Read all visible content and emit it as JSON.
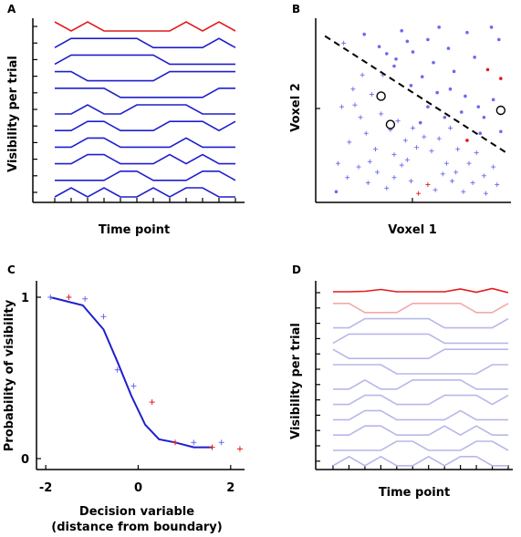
{
  "panels": {
    "A": {
      "letter": "A",
      "ylabel": "Visibility per trial",
      "xlabel": "Time point"
    },
    "B": {
      "letter": "B",
      "ylabel": "Voxel 2",
      "xlabel": "Voxel 1"
    },
    "C": {
      "letter": "C",
      "ylabel": "Probability of visibility",
      "xlabel_line1": "Decision variable",
      "xlabel_line2": "(distance from boundary)"
    },
    "D": {
      "letter": "D",
      "ylabel": "Visibility per trial",
      "xlabel": "Time point"
    }
  },
  "colors": {
    "axis": "#000000",
    "red": "#e41a1c",
    "blue": "#1f1fcc",
    "light_blue": "#b7b7ea",
    "light_red": "#f2a9a9",
    "scatter_blue": "#6a6af0",
    "boundary": "#000000"
  },
  "chart_data": [
    {
      "panel": "A",
      "type": "line",
      "description_note": "",
      "n_timepoints": 12,
      "series": [
        {
          "color": "red",
          "values": [
            1,
            0,
            1,
            0,
            0,
            0,
            0,
            0,
            1,
            0,
            1,
            0
          ]
        },
        {
          "color": "blue",
          "values": [
            0,
            1,
            1,
            1,
            1,
            1,
            0,
            0,
            0,
            0,
            1,
            0
          ]
        },
        {
          "color": "blue",
          "values": [
            0,
            1,
            1,
            1,
            1,
            1,
            1,
            0,
            0,
            0,
            0,
            0
          ]
        },
        {
          "color": "blue",
          "values": [
            1,
            1,
            0,
            0,
            0,
            0,
            0,
            1,
            1,
            1,
            1,
            1
          ]
        },
        {
          "color": "blue",
          "values": [
            1,
            1,
            1,
            1,
            0,
            0,
            0,
            0,
            0,
            0,
            1,
            1
          ]
        },
        {
          "color": "blue",
          "values": [
            0,
            0,
            1,
            0,
            0,
            1,
            1,
            1,
            1,
            0,
            0,
            0
          ]
        },
        {
          "color": "blue",
          "values": [
            0,
            0,
            1,
            1,
            0,
            0,
            0,
            1,
            1,
            1,
            0,
            1
          ]
        },
        {
          "color": "blue",
          "values": [
            0,
            0,
            1,
            1,
            0,
            0,
            0,
            0,
            1,
            0,
            0,
            0
          ]
        },
        {
          "color": "blue",
          "values": [
            0,
            0,
            1,
            1,
            0,
            0,
            0,
            1,
            0,
            1,
            0,
            0
          ]
        },
        {
          "color": "blue",
          "values": [
            0,
            0,
            0,
            0,
            1,
            1,
            0,
            0,
            0,
            1,
            1,
            0
          ]
        },
        {
          "color": "blue",
          "values": [
            0,
            1,
            0,
            1,
            0,
            0,
            1,
            0,
            1,
            1,
            0,
            0
          ]
        }
      ]
    },
    {
      "panel": "B",
      "type": "scatter",
      "xlim": [
        0,
        1
      ],
      "ylim": [
        0,
        1
      ],
      "boundary": [
        [
          0.03,
          0.92
        ],
        [
          1.0,
          0.26
        ]
      ],
      "points": [
        [
          0.09,
          0.04,
          "b",
          "*"
        ],
        [
          0.13,
          0.88,
          "b",
          "+"
        ],
        [
          0.24,
          0.93,
          "b",
          "*"
        ],
        [
          0.32,
          0.86,
          "b",
          "*"
        ],
        [
          0.41,
          0.79,
          "b",
          "*"
        ],
        [
          0.44,
          0.95,
          "b",
          "*"
        ],
        [
          0.5,
          0.83,
          "b",
          "*"
        ],
        [
          0.58,
          0.9,
          "b",
          "*"
        ],
        [
          0.61,
          0.77,
          "b",
          "*"
        ],
        [
          0.69,
          0.85,
          "b",
          "*"
        ],
        [
          0.72,
          0.72,
          "b",
          "*"
        ],
        [
          0.79,
          0.94,
          "b",
          "*"
        ],
        [
          0.83,
          0.8,
          "b",
          "*"
        ],
        [
          0.9,
          0.73,
          "r",
          "*"
        ],
        [
          0.96,
          0.9,
          "b",
          "*"
        ],
        [
          0.49,
          0.64,
          "b",
          "*"
        ],
        [
          0.55,
          0.69,
          "b",
          "*"
        ],
        [
          0.63,
          0.6,
          "b",
          "*"
        ],
        [
          0.7,
          0.62,
          "b",
          "*"
        ],
        [
          0.78,
          0.58,
          "b",
          "*"
        ],
        [
          0.85,
          0.52,
          "b",
          "*"
        ],
        [
          0.93,
          0.56,
          "b",
          "*"
        ],
        [
          0.97,
          0.68,
          "r",
          "*"
        ],
        [
          0.58,
          0.52,
          "b",
          "*"
        ],
        [
          0.67,
          0.46,
          "b",
          "*"
        ],
        [
          0.76,
          0.49,
          "b",
          "*"
        ],
        [
          0.88,
          0.46,
          "b",
          "*"
        ],
        [
          0.54,
          0.43,
          "b",
          "*"
        ],
        [
          0.86,
          0.37,
          "b",
          "*"
        ],
        [
          0.79,
          0.33,
          "r",
          "*"
        ],
        [
          0.97,
          0.38,
          "b",
          "*"
        ],
        [
          0.4,
          0.75,
          "b",
          "*"
        ],
        [
          0.36,
          0.82,
          "b",
          "*"
        ],
        [
          0.47,
          0.89,
          "b",
          "*"
        ],
        [
          0.64,
          0.97,
          "b",
          "*"
        ],
        [
          0.92,
          0.97,
          "b",
          "*"
        ],
        [
          0.12,
          0.52,
          "b",
          "+"
        ],
        [
          0.16,
          0.32,
          "b",
          "+"
        ],
        [
          0.19,
          0.53,
          "b",
          "+"
        ],
        [
          0.22,
          0.46,
          "b",
          "+"
        ],
        [
          0.25,
          0.37,
          "b",
          "+"
        ],
        [
          0.28,
          0.59,
          "b",
          "+"
        ],
        [
          0.3,
          0.28,
          "b",
          "+"
        ],
        [
          0.33,
          0.48,
          "b",
          "+"
        ],
        [
          0.38,
          0.39,
          "b",
          "+"
        ],
        [
          0.4,
          0.25,
          "b",
          "+"
        ],
        [
          0.42,
          0.44,
          "b",
          "+"
        ],
        [
          0.46,
          0.33,
          "b",
          "+"
        ],
        [
          0.5,
          0.4,
          "b",
          "+"
        ],
        [
          0.52,
          0.29,
          "b",
          "+"
        ],
        [
          0.56,
          0.35,
          "b",
          "+"
        ],
        [
          0.6,
          0.27,
          "b",
          "+"
        ],
        [
          0.64,
          0.34,
          "b",
          "+"
        ],
        [
          0.7,
          0.4,
          "b",
          "+"
        ],
        [
          0.74,
          0.28,
          "b",
          "+"
        ],
        [
          0.8,
          0.2,
          "b",
          "+"
        ],
        [
          0.84,
          0.26,
          "b",
          "+"
        ],
        [
          0.88,
          0.13,
          "b",
          "+"
        ],
        [
          0.93,
          0.18,
          "b",
          "+"
        ],
        [
          0.15,
          0.12,
          "b",
          "+"
        ],
        [
          0.21,
          0.18,
          "b",
          "+"
        ],
        [
          0.26,
          0.09,
          "b",
          "+"
        ],
        [
          0.31,
          0.15,
          "b",
          "+"
        ],
        [
          0.36,
          0.06,
          "b",
          "+"
        ],
        [
          0.4,
          0.12,
          "b",
          "+"
        ],
        [
          0.44,
          0.19,
          "b",
          "+"
        ],
        [
          0.49,
          0.1,
          "b",
          "+"
        ],
        [
          0.53,
          0.03,
          "r",
          "+"
        ],
        [
          0.58,
          0.08,
          "r",
          "+"
        ],
        [
          0.62,
          0.05,
          "b",
          "+"
        ],
        [
          0.66,
          0.14,
          "b",
          "+"
        ],
        [
          0.71,
          0.1,
          "b",
          "+"
        ],
        [
          0.77,
          0.04,
          "b",
          "+"
        ],
        [
          0.82,
          0.09,
          "b",
          "+"
        ],
        [
          0.89,
          0.03,
          "b",
          "+"
        ],
        [
          0.95,
          0.08,
          "b",
          "+"
        ],
        [
          0.34,
          0.7,
          "b",
          "+"
        ],
        [
          0.18,
          0.62,
          "b",
          "+"
        ],
        [
          0.23,
          0.7,
          "b",
          "+"
        ],
        [
          0.27,
          0.21,
          "b",
          "+"
        ],
        [
          0.47,
          0.22,
          "b",
          "+"
        ],
        [
          0.1,
          0.2,
          "b",
          "+"
        ],
        [
          0.68,
          0.2,
          "b",
          "+"
        ],
        [
          0.73,
          0.15,
          "b",
          "+"
        ]
      ],
      "circled": [
        [
          0.33,
          0.58
        ],
        [
          0.38,
          0.42
        ],
        [
          0.97,
          0.5
        ]
      ]
    },
    {
      "panel": "C",
      "type": "line",
      "xlabel_ticks": [
        "-2",
        "0",
        "2"
      ],
      "ylabel_ticks": [
        "0",
        "1"
      ],
      "xlim": [
        -2.2,
        2.3
      ],
      "ylim": [
        -0.05,
        1.05
      ],
      "curve_x": [
        -1.9,
        -1.2,
        -0.75,
        -0.45,
        -0.15,
        0.15,
        0.45,
        0.8,
        1.2,
        1.6
      ],
      "curve_y": [
        1.0,
        0.95,
        0.8,
        0.6,
        0.39,
        0.21,
        0.12,
        0.1,
        0.07,
        0.07
      ],
      "points_x": [
        -1.9,
        -1.5,
        -1.15,
        -0.75,
        -0.45,
        -0.1,
        0.3,
        0.8,
        1.2,
        1.6,
        1.8,
        2.2
      ],
      "points_y": [
        1.0,
        1.0,
        0.99,
        0.88,
        0.55,
        0.45,
        0.35,
        0.1,
        0.1,
        0.07,
        0.1,
        0.06
      ],
      "points_color": [
        "b",
        "r",
        "b",
        "b",
        "b",
        "b",
        "r",
        "r",
        "b",
        "r",
        "b",
        "r"
      ]
    },
    {
      "panel": "D",
      "type": "line",
      "n_timepoints": 12,
      "series": [
        {
          "color": "red",
          "values": [
            0.6,
            0.6,
            0.65,
            0.85,
            0.6,
            0.6,
            0.6,
            0.6,
            0.9,
            0.55,
            0.95,
            0.5
          ]
        },
        {
          "color": "light_red",
          "values": [
            1,
            1,
            0,
            0,
            0,
            1,
            1,
            1,
            1,
            0,
            0,
            1
          ]
        },
        {
          "color": "light_blue",
          "values": [
            0,
            0,
            1,
            1,
            1,
            1,
            1,
            0,
            0,
            0,
            0,
            1
          ]
        },
        {
          "color": "light_blue",
          "values": [
            0,
            1,
            1,
            1,
            1,
            1,
            1,
            0,
            0,
            0,
            0,
            0
          ]
        },
        {
          "color": "light_blue",
          "values": [
            1,
            0,
            0,
            0,
            0,
            0,
            0,
            1,
            1,
            1,
            1,
            1
          ]
        },
        {
          "color": "light_blue",
          "values": [
            1,
            1,
            1,
            1,
            0,
            0,
            0,
            0,
            0,
            0,
            1,
            1
          ]
        },
        {
          "color": "light_blue",
          "values": [
            0,
            0,
            1,
            0,
            0,
            1,
            1,
            1,
            1,
            0,
            0,
            0
          ]
        },
        {
          "color": "light_blue",
          "values": [
            0,
            0,
            1,
            1,
            0,
            0,
            0,
            1,
            1,
            1,
            0,
            1
          ]
        },
        {
          "color": "light_blue",
          "values": [
            0,
            0,
            1,
            1,
            0,
            0,
            0,
            0,
            1,
            0,
            0,
            0
          ]
        },
        {
          "color": "light_blue",
          "values": [
            0,
            0,
            1,
            1,
            0,
            0,
            0,
            1,
            0,
            1,
            0,
            0
          ]
        },
        {
          "color": "light_blue",
          "values": [
            0,
            0,
            0,
            0,
            1,
            1,
            0,
            0,
            0,
            1,
            1,
            0
          ]
        },
        {
          "color": "light_blue",
          "values": [
            0,
            1,
            0,
            1,
            0,
            0,
            1,
            0,
            1,
            1,
            0,
            0
          ]
        }
      ]
    }
  ]
}
